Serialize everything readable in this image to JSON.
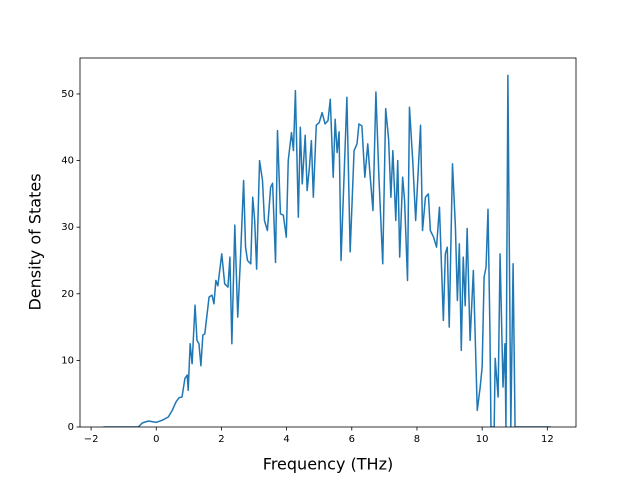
{
  "chart_data": {
    "type": "line",
    "xlabel": "Frequency (THz)",
    "ylabel": "Density of States",
    "x": [
      -1.62,
      -0.55,
      -0.43,
      -0.24,
      0,
      0.18,
      0.37,
      0.49,
      0.61,
      0.7,
      0.79,
      0.88,
      0.95,
      0.98,
      1.04,
      1.1,
      1.19,
      1.25,
      1.31,
      1.37,
      1.43,
      1.49,
      1.62,
      1.71,
      1.77,
      1.83,
      1.89,
      2.01,
      2.1,
      2.2,
      2.26,
      2.32,
      2.41,
      2.5,
      2.59,
      2.68,
      2.74,
      2.8,
      2.9,
      2.96,
      3.02,
      3.08,
      3.17,
      3.26,
      3.32,
      3.41,
      3.51,
      3.57,
      3.66,
      3.72,
      3.81,
      3.9,
      3.99,
      4.05,
      4.15,
      4.21,
      4.27,
      4.36,
      4.42,
      4.48,
      4.57,
      4.63,
      4.7,
      4.76,
      4.82,
      4.91,
      5.0,
      5.09,
      5.18,
      5.27,
      5.34,
      5.43,
      5.49,
      5.55,
      5.61,
      5.67,
      5.85,
      5.95,
      6.07,
      6.16,
      6.22,
      6.31,
      6.4,
      6.49,
      6.55,
      6.65,
      6.74,
      6.83,
      6.95,
      7.04,
      7.13,
      7.2,
      7.26,
      7.35,
      7.41,
      7.47,
      7.56,
      7.62,
      7.71,
      7.77,
      7.87,
      7.96,
      8.11,
      8.17,
      8.26,
      8.35,
      8.41,
      8.51,
      8.6,
      8.69,
      8.81,
      8.87,
      8.93,
      8.99,
      9.09,
      9.18,
      9.24,
      9.3,
      9.36,
      9.42,
      9.48,
      9.54,
      9.63,
      9.73,
      9.85,
      9.94,
      10.0,
      10.06,
      10.12,
      10.18,
      10.24,
      10.27,
      10.37,
      10.4,
      10.49,
      10.55,
      10.64,
      10.7,
      10.73,
      10.79,
      10.88,
      10.95,
      11.01,
      12.1
    ],
    "series": [
      {
        "color": "#1f77b4",
        "values": [
          0,
          0,
          0.6,
          0.9,
          0.7,
          1.0,
          1.5,
          2.5,
          3.8,
          4.4,
          4.5,
          7.3,
          7.8,
          5.5,
          12.5,
          9.5,
          18.3,
          13,
          12.5,
          9.2,
          13.8,
          14,
          19.5,
          19.8,
          18.5,
          22,
          21.2,
          26,
          21.5,
          21,
          25.5,
          12.5,
          30.3,
          16.5,
          26,
          37,
          27,
          25,
          24.5,
          34.5,
          31,
          23.7,
          40,
          37,
          31,
          29.5,
          36,
          36.6,
          24.7,
          44.5,
          32,
          31.8,
          28.5,
          40,
          44.2,
          41.5,
          50.5,
          31.5,
          45,
          36.5,
          43.8,
          35.5,
          39,
          43,
          34.5,
          45.3,
          45.7,
          47.2,
          45.5,
          46,
          49.2,
          37.5,
          46.2,
          41.2,
          44.3,
          25,
          49.5,
          26.3,
          41.5,
          42.5,
          45.5,
          45.2,
          37.5,
          42.5,
          38.5,
          32.5,
          50.3,
          37.8,
          24.5,
          47.8,
          43.2,
          34.5,
          41.5,
          31,
          40,
          25.5,
          37.5,
          34,
          22,
          48,
          40,
          31,
          45.3,
          29.5,
          34.5,
          35,
          29.5,
          28.5,
          27,
          33,
          16,
          26,
          27,
          15,
          39.5,
          30,
          19,
          27.5,
          11.5,
          25.5,
          18.2,
          29.8,
          13,
          23.5,
          2.5,
          6,
          9,
          22.5,
          24,
          32.7,
          14,
          0,
          0,
          10.3,
          4.5,
          26,
          6,
          12.5,
          0,
          52.8,
          0,
          24.5,
          0,
          0
        ]
      }
    ],
    "xlim": [
      -2.34,
      12.88
    ],
    "ylim": [
      0,
      55.4
    ],
    "xticks": [
      {
        "value": -2,
        "label": "−2"
      },
      0,
      2,
      4,
      6,
      8,
      10,
      12
    ],
    "yticks": [
      0,
      10,
      20,
      30,
      40,
      50
    ]
  }
}
